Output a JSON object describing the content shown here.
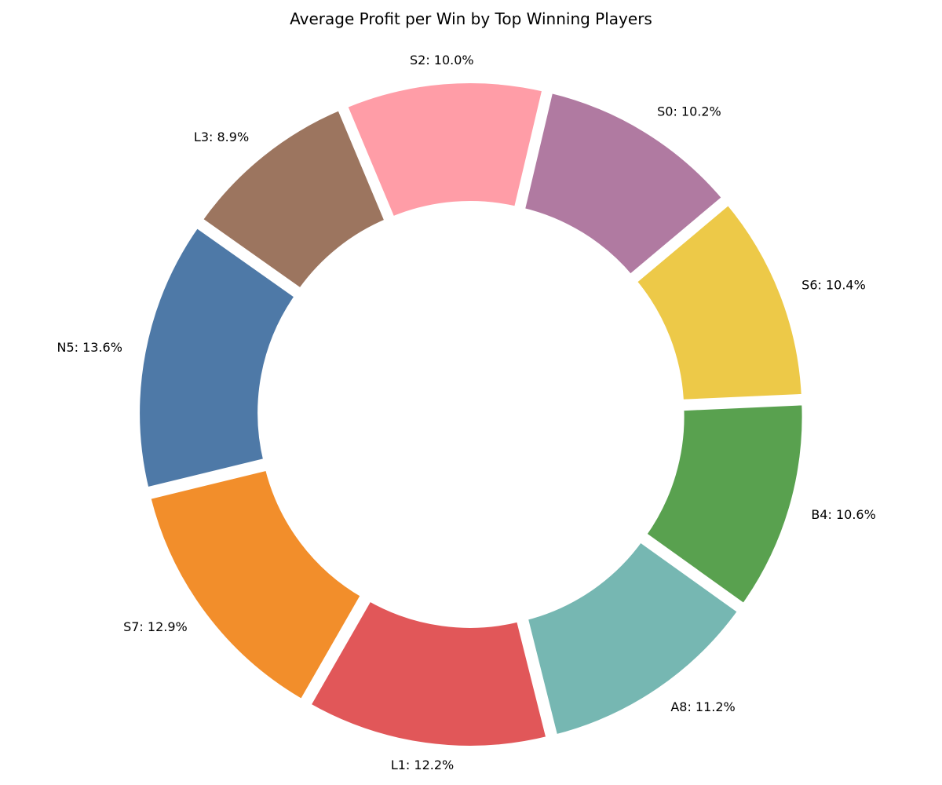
{
  "chart_data": {
    "type": "pie",
    "title": "Average Profit per Win by Top Winning Players",
    "donut": true,
    "slices": [
      {
        "label": "S0",
        "value": 10.2,
        "display": "S0: 10.2%",
        "color": "#b07aa1"
      },
      {
        "label": "S2",
        "value": 10.0,
        "display": "S2: 10.0%",
        "color": "#ff9da7"
      },
      {
        "label": "L3",
        "value": 8.9,
        "display": "L3: 8.9%",
        "color": "#9c755f"
      },
      {
        "label": "N5",
        "value": 13.6,
        "display": "N5: 13.6%",
        "color": "#4e79a7"
      },
      {
        "label": "S7",
        "value": 12.9,
        "display": "S7: 12.9%",
        "color": "#f28e2b"
      },
      {
        "label": "L1",
        "value": 12.2,
        "display": "L1: 12.2%",
        "color": "#e15759"
      },
      {
        "label": "A8",
        "value": 11.2,
        "display": "A8: 11.2%",
        "color": "#76b7b2"
      },
      {
        "label": "B4",
        "value": 10.6,
        "display": "B4: 10.6%",
        "color": "#59a14f"
      },
      {
        "label": "S6",
        "value": 10.4,
        "display": "S6: 10.4%",
        "color": "#edc948"
      }
    ]
  }
}
